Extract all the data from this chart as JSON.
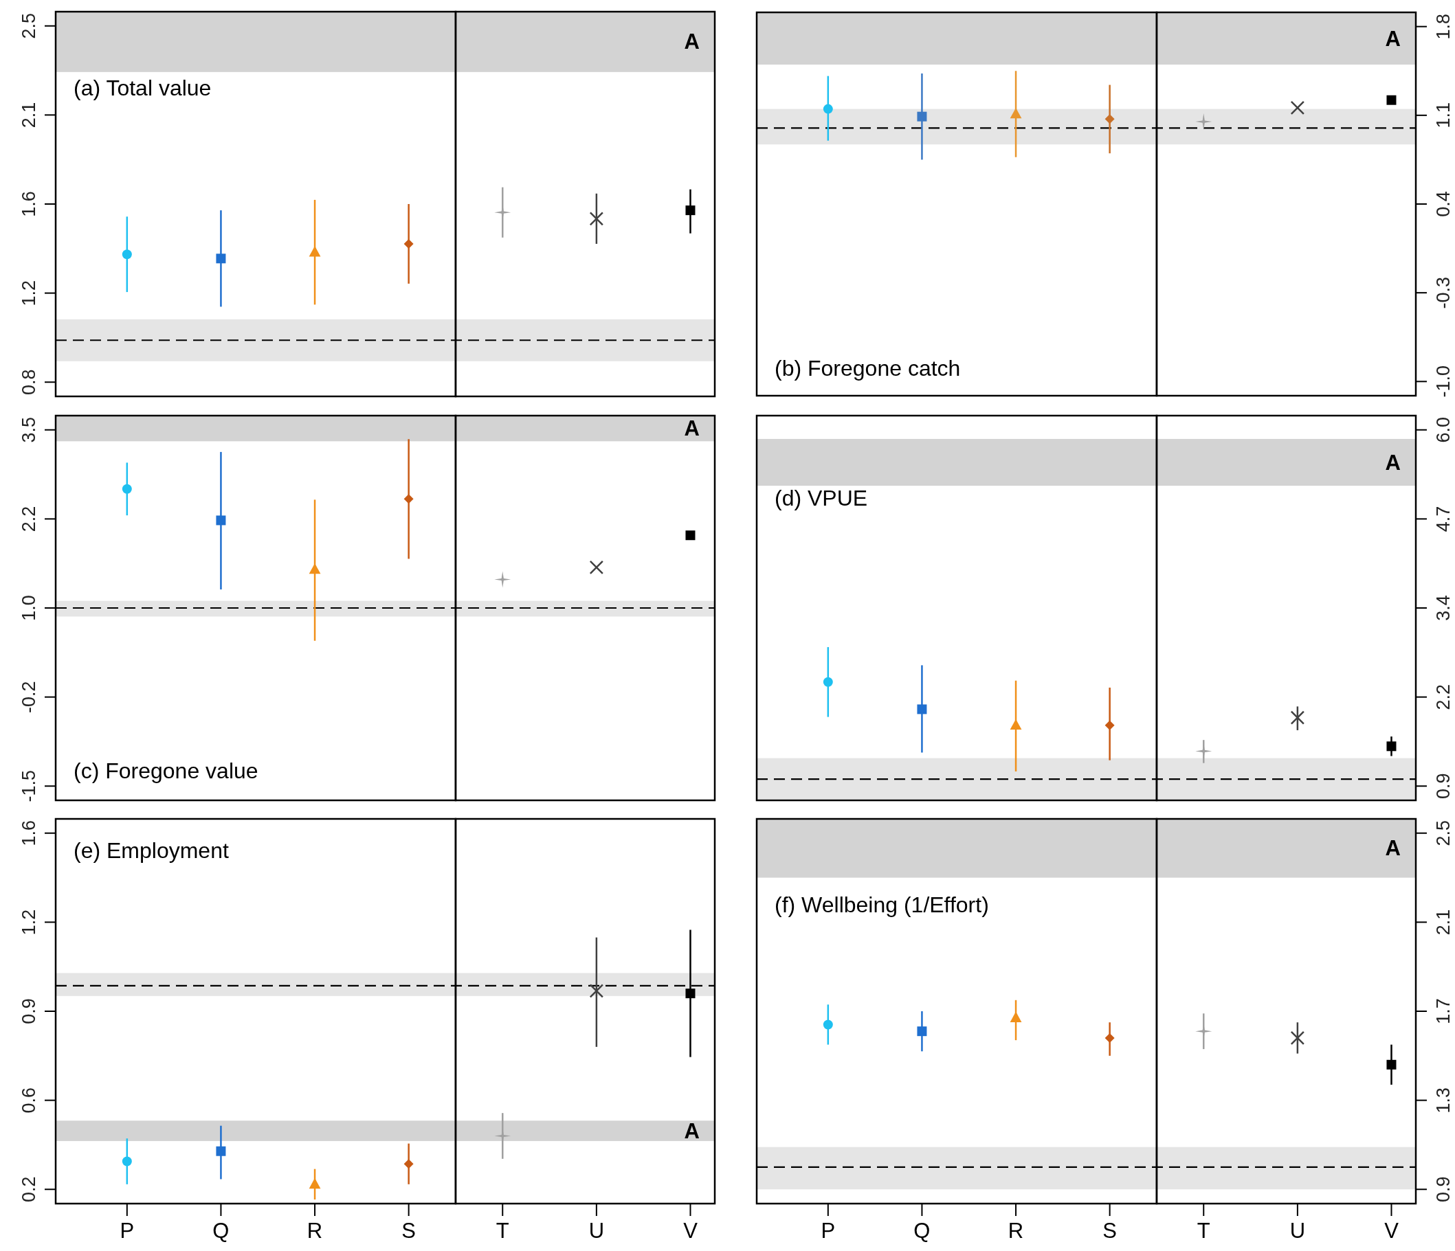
{
  "chart_data": [
    {
      "type": "scatter",
      "title": "(a) Total value",
      "categories": [
        "P",
        "Q",
        "R",
        "S",
        "T",
        "U",
        "V"
      ],
      "ylim": [
        0.732,
        2.568
      ],
      "yticks": [
        0.8,
        {
          "value": 1.225,
          "label": "1.2"
        },
        {
          "value": 1.65,
          "label": "1.6"
        },
        {
          "value": 2.075,
          "label": "2.1"
        },
        2.5
      ],
      "tick_labels": "y",
      "line_style": "dashed",
      "ref_lines": [
        {
          "axis": "y",
          "value": 1,
          "color": "#000000"
        }
      ],
      "bands": [
        {
          "axis": "y",
          "from": 0.9,
          "to": 1.1,
          "color": "#e5e5e5"
        },
        {
          "axis": "y",
          "from": 2.28,
          "to": 2.568,
          "color": "#d3d3d3",
          "label": "A"
        }
      ],
      "series": [
        {
          "x": [
            "P"
          ],
          "values": [
            1.41
          ],
          "errors": [
            [
              1.23,
              1.59
            ]
          ],
          "color": "#1ec0f0",
          "marker": "circle"
        },
        {
          "x": [
            "Q"
          ],
          "values": [
            1.39
          ],
          "errors": [
            [
              1.16,
              1.62
            ]
          ],
          "color": "#1f6fcf",
          "marker": "square"
        },
        {
          "x": [
            "R"
          ],
          "values": [
            1.42
          ],
          "errors": [
            [
              1.17,
              1.67
            ]
          ],
          "color": "#f0901a",
          "marker": "triangle"
        },
        {
          "x": [
            "S"
          ],
          "values": [
            1.46
          ],
          "errors": [
            [
              1.27,
              1.65
            ]
          ],
          "color": "#c85a14",
          "marker": "diamond"
        },
        {
          "x": [
            "T"
          ],
          "values": [
            1.61
          ],
          "errors": [
            [
              1.49,
              1.73
            ]
          ],
          "color": "#a0a0a0",
          "marker": "star"
        },
        {
          "x": [
            "U"
          ],
          "values": [
            1.58
          ],
          "errors": [
            [
              1.46,
              1.7
            ]
          ],
          "color": "#404040",
          "marker": "cross"
        },
        {
          "x": [
            "V"
          ],
          "values": [
            1.62
          ],
          "errors": [
            [
              1.51,
              1.72
            ]
          ],
          "color": "#000000",
          "marker": "square"
        }
      ]
    },
    {
      "type": "scatter",
      "title": "(b) Foregone catch",
      "categories": [
        "P",
        "Q",
        "R",
        "S",
        "T",
        "U",
        "V"
      ],
      "y2lim": [
        -1.112,
        1.912
      ],
      "y2ticks": [
        {
          "value": -1,
          "label": "-1.0"
        },
        -0.3,
        0.4,
        1.1,
        1.8
      ],
      "tick_labels": "y",
      "line_style": "dashed",
      "ref_lines": [
        {
          "axis": "y2",
          "value": 1,
          "color": "#000000"
        }
      ],
      "bands": [
        {
          "axis": "y2",
          "from": 0.87,
          "to": 1.15,
          "color": "#e5e5e5"
        },
        {
          "axis": "y2",
          "from": 1.5,
          "to": 1.912,
          "color": "#d3d3d3",
          "label": "A"
        }
      ],
      "series": [
        {
          "axis": "y2",
          "x": [
            "P"
          ],
          "values": [
            1.15
          ],
          "errors": [
            [
              0.9,
              1.41
            ]
          ],
          "color": "#1ec0f0",
          "marker": "circle"
        },
        {
          "axis": "y2",
          "x": [
            "Q"
          ],
          "values": [
            1.09
          ],
          "errors": [
            [
              0.75,
              1.43
            ]
          ],
          "color": "#3b78c4",
          "marker": "square"
        },
        {
          "axis": "y2",
          "x": [
            "R"
          ],
          "values": [
            1.11
          ],
          "errors": [
            [
              0.77,
              1.45
            ]
          ],
          "color": "#e8962e",
          "marker": "triangle"
        },
        {
          "axis": "y2",
          "x": [
            "S"
          ],
          "values": [
            1.07
          ],
          "errors": [
            [
              0.8,
              1.34
            ]
          ],
          "color": "#c87028",
          "marker": "diamond"
        },
        {
          "axis": "y2",
          "x": [
            "T"
          ],
          "values": [
            1.05
          ],
          "color": "#a0a0a0",
          "marker": "star"
        },
        {
          "axis": "y2",
          "x": [
            "U"
          ],
          "values": [
            1.16
          ],
          "color": "#404040",
          "marker": "cross"
        },
        {
          "axis": "y2",
          "x": [
            "V"
          ],
          "values": [
            1.22
          ],
          "color": "#000000",
          "marker": "square"
        }
      ]
    },
    {
      "type": "scatter",
      "title": "(c) Foregone value",
      "categories": [
        "P",
        "Q",
        "R",
        "S",
        "T",
        "U",
        "V"
      ],
      "ylim": [
        -1.7,
        3.7
      ],
      "yticks": [
        -1.5,
        {
          "value": -0.25,
          "label": "-0.2"
        },
        {
          "value": 1,
          "label": "1.0"
        },
        {
          "value": 2.25,
          "label": "2.2"
        },
        3.5
      ],
      "tick_labels": "y",
      "line_style": "dashed",
      "ref_lines": [
        {
          "axis": "y",
          "value": 1,
          "color": "#000000"
        }
      ],
      "bands": [
        {
          "axis": "y",
          "from": 0.88,
          "to": 1.1,
          "color": "#e5e5e5"
        },
        {
          "axis": "y",
          "from": 3.34,
          "to": 3.7,
          "color": "#d3d3d3",
          "label": "A"
        }
      ],
      "series": [
        {
          "x": [
            "P"
          ],
          "values": [
            2.67
          ],
          "errors": [
            [
              2.3,
              3.04
            ]
          ],
          "color": "#1ec0f0",
          "marker": "circle"
        },
        {
          "x": [
            "Q"
          ],
          "values": [
            2.23
          ],
          "errors": [
            [
              1.26,
              3.19
            ]
          ],
          "color": "#1f6fcf",
          "marker": "square"
        },
        {
          "x": [
            "R"
          ],
          "values": [
            1.54
          ],
          "errors": [
            [
              0.54,
              2.52
            ]
          ],
          "color": "#f0901a",
          "marker": "triangle"
        },
        {
          "x": [
            "S"
          ],
          "values": [
            2.53
          ],
          "errors": [
            [
              1.69,
              3.37
            ]
          ],
          "color": "#c85a14",
          "marker": "diamond"
        },
        {
          "x": [
            "T"
          ],
          "values": [
            1.4
          ],
          "color": "#a0a0a0",
          "marker": "star"
        },
        {
          "x": [
            "U"
          ],
          "values": [
            1.57
          ],
          "color": "#404040",
          "marker": "cross"
        },
        {
          "x": [
            "V"
          ],
          "values": [
            2.02
          ],
          "color": "#000000",
          "marker": "square"
        }
      ]
    },
    {
      "type": "scatter",
      "title": "(d) VPUE",
      "categories": [
        "P",
        "Q",
        "R",
        "S",
        "T",
        "U",
        "V"
      ],
      "y2lim": [
        0.696,
        6.204
      ],
      "y2ticks": [
        0.9,
        {
          "value": 2.175,
          "label": "2.2"
        },
        {
          "value": 3.45,
          "label": "3.4"
        },
        {
          "value": 4.725,
          "label": "4.7"
        },
        {
          "value": 6,
          "label": "6.0"
        }
      ],
      "tick_labels": "y",
      "line_style": "dashed",
      "ref_lines": [
        {
          "axis": "y2",
          "value": 1,
          "color": "#000000"
        }
      ],
      "bands": [
        {
          "axis": "y2",
          "from": 0.71,
          "to": 1.3,
          "color": "#e5e5e5"
        },
        {
          "axis": "y2",
          "from": 5.2,
          "to": 5.87,
          "color": "#d3d3d3",
          "label": "A"
        }
      ],
      "series": [
        {
          "axis": "y2",
          "x": [
            "P"
          ],
          "values": [
            2.39
          ],
          "errors": [
            [
              1.89,
              2.89
            ]
          ],
          "color": "#1ec0f0",
          "marker": "circle"
        },
        {
          "axis": "y2",
          "x": [
            "Q"
          ],
          "values": [
            2.0
          ],
          "errors": [
            [
              1.38,
              2.63
            ]
          ],
          "color": "#1f6fcf",
          "marker": "square"
        },
        {
          "axis": "y2",
          "x": [
            "R"
          ],
          "values": [
            1.77
          ],
          "errors": [
            [
              1.11,
              2.41
            ]
          ],
          "color": "#f0901a",
          "marker": "triangle"
        },
        {
          "axis": "y2",
          "x": [
            "S"
          ],
          "values": [
            1.77
          ],
          "errors": [
            [
              1.27,
              2.31
            ]
          ],
          "color": "#c85a14",
          "marker": "diamond"
        },
        {
          "axis": "y2",
          "x": [
            "T"
          ],
          "values": [
            1.4
          ],
          "errors": [
            [
              1.23,
              1.56
            ]
          ],
          "color": "#a0a0a0",
          "marker": "star"
        },
        {
          "axis": "y2",
          "x": [
            "U"
          ],
          "values": [
            1.88
          ],
          "errors": [
            [
              1.7,
              2.04
            ]
          ],
          "color": "#404040",
          "marker": "cross"
        },
        {
          "axis": "y2",
          "x": [
            "V"
          ],
          "values": [
            1.47
          ],
          "errors": [
            [
              1.33,
              1.61
            ]
          ],
          "color": "#000000",
          "marker": "square"
        }
      ]
    },
    {
      "type": "scatter",
      "title": "(e) Employment",
      "categories": [
        "P",
        "Q",
        "R",
        "S",
        "T",
        "U",
        "V"
      ],
      "ylim": [
        0.144,
        1.656
      ],
      "yticks": [
        0.2,
        {
          "value": 0.55,
          "label": "0.6"
        },
        0.9,
        {
          "value": 1.25,
          "label": "1.2"
        },
        1.6
      ],
      "line_style": "dashed",
      "ref_lines": [
        {
          "axis": "y",
          "value": 1,
          "color": "#000000"
        }
      ],
      "bands": [
        {
          "axis": "y",
          "from": 0.96,
          "to": 1.05,
          "color": "#e5e5e5"
        },
        {
          "axis": "y",
          "from": 0.39,
          "to": 0.47,
          "color": "#d3d3d3",
          "label": "A"
        }
      ],
      "series": [
        {
          "x": [
            "P"
          ],
          "values": [
            0.31
          ],
          "errors": [
            [
              0.22,
              0.4
            ]
          ],
          "color": "#1ec0f0",
          "marker": "circle"
        },
        {
          "x": [
            "Q"
          ],
          "values": [
            0.35
          ],
          "errors": [
            [
              0.24,
              0.45
            ]
          ],
          "color": "#1f6fcf",
          "marker": "square"
        },
        {
          "x": [
            "R"
          ],
          "values": [
            0.22
          ],
          "errors": [
            [
              0.16,
              0.28
            ]
          ],
          "color": "#f0901a",
          "marker": "triangle"
        },
        {
          "x": [
            "S"
          ],
          "values": [
            0.3
          ],
          "errors": [
            [
              0.22,
              0.38
            ]
          ],
          "color": "#c85a14",
          "marker": "diamond"
        },
        {
          "x": [
            "T"
          ],
          "values": [
            0.41
          ],
          "errors": [
            [
              0.32,
              0.5
            ]
          ],
          "color": "#a0a0a0",
          "marker": "star"
        },
        {
          "x": [
            "U"
          ],
          "values": [
            0.98
          ],
          "errors": [
            [
              0.76,
              1.19
            ]
          ],
          "color": "#404040",
          "marker": "cross"
        },
        {
          "x": [
            "V"
          ],
          "values": [
            0.97
          ],
          "errors": [
            [
              0.72,
              1.22
            ]
          ],
          "color": "#000000",
          "marker": "square"
        }
      ]
    },
    {
      "type": "scatter",
      "title": "(f) Wellbeing (1/Effort)",
      "categories": [
        "P",
        "Q",
        "R",
        "S",
        "T",
        "U",
        "V"
      ],
      "y2lim": [
        0.836,
        2.564
      ],
      "y2ticks": [
        0.9,
        1.3,
        1.7,
        2.1,
        2.5
      ],
      "line_style": "dashed",
      "ref_lines": [
        {
          "axis": "y2",
          "value": 1,
          "color": "#000000"
        }
      ],
      "bands": [
        {
          "axis": "y2",
          "from": 0.9,
          "to": 1.09,
          "color": "#e5e5e5"
        },
        {
          "axis": "y2",
          "from": 2.3,
          "to": 2.564,
          "color": "#d3d3d3",
          "label": "A"
        }
      ],
      "series": [
        {
          "axis": "y2",
          "x": [
            "P"
          ],
          "values": [
            1.64
          ],
          "errors": [
            [
              1.55,
              1.73
            ]
          ],
          "color": "#1ec0f0",
          "marker": "circle"
        },
        {
          "axis": "y2",
          "x": [
            "Q"
          ],
          "values": [
            1.61
          ],
          "errors": [
            [
              1.52,
              1.7
            ]
          ],
          "color": "#1f6fcf",
          "marker": "square"
        },
        {
          "axis": "y2",
          "x": [
            "R"
          ],
          "values": [
            1.67
          ],
          "errors": [
            [
              1.57,
              1.75
            ]
          ],
          "color": "#f0901a",
          "marker": "triangle"
        },
        {
          "axis": "y2",
          "x": [
            "S"
          ],
          "values": [
            1.58
          ],
          "errors": [
            [
              1.5,
              1.65
            ]
          ],
          "color": "#c85a14",
          "marker": "diamond"
        },
        {
          "axis": "y2",
          "x": [
            "T"
          ],
          "values": [
            1.61
          ],
          "errors": [
            [
              1.53,
              1.69
            ]
          ],
          "color": "#a0a0a0",
          "marker": "star"
        },
        {
          "axis": "y2",
          "x": [
            "U"
          ],
          "values": [
            1.58
          ],
          "errors": [
            [
              1.51,
              1.65
            ]
          ],
          "color": "#404040",
          "marker": "cross"
        },
        {
          "axis": "y2",
          "x": [
            "V"
          ],
          "values": [
            1.46
          ],
          "errors": [
            [
              1.37,
              1.55
            ]
          ],
          "color": "#000000",
          "marker": "square"
        }
      ]
    }
  ]
}
